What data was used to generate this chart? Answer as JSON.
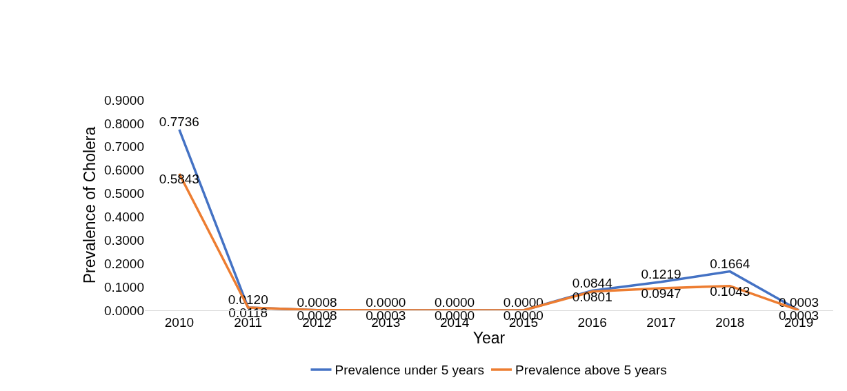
{
  "chart_data": {
    "type": "line",
    "xlabel": "Year",
    "ylabel": "Prevalence of Cholera",
    "categories": [
      "2010",
      "2011",
      "2012",
      "2013",
      "2014",
      "2015",
      "2016",
      "2017",
      "2018",
      "2019"
    ],
    "series": [
      {
        "name": "Prevalence under 5 years",
        "color": "#4472c4",
        "values": [
          0.7736,
          0.012,
          0.0008,
          0.0,
          0.0,
          0.0,
          0.0844,
          0.1219,
          0.1664,
          0.0003
        ],
        "value_labels": [
          "0.7736",
          "0.0120",
          "0.0008",
          "0.0000",
          "0.0000",
          "0.0000",
          "0.0844",
          "0.1219",
          "0.1664",
          "0.0003"
        ]
      },
      {
        "name": "Prevalence above 5 years",
        "color": "#ed7d31",
        "values": [
          0.5843,
          0.0118,
          0.0008,
          0.0003,
          0.0,
          0.0,
          0.0801,
          0.0947,
          0.1043,
          0.0003
        ],
        "value_labels": [
          "0.5843",
          "0.0118",
          "0.0008",
          "0.0003",
          "0.0000",
          "0.0000",
          "0.0801",
          "0.0947",
          "0.1043",
          "0.0003"
        ]
      }
    ],
    "ylim": [
      0,
      0.9
    ],
    "yticks": [
      {
        "value": 0,
        "label": "0.0000"
      },
      {
        "value": 0.1,
        "label": "0.1000"
      },
      {
        "value": 0.2,
        "label": "0.2000"
      },
      {
        "value": 0.3,
        "label": "0.3000"
      },
      {
        "value": 0.4,
        "label": "0.4000"
      },
      {
        "value": 0.5,
        "label": "0.5000"
      },
      {
        "value": 0.6,
        "label": "0.6000"
      },
      {
        "value": 0.7,
        "label": "0.7000"
      },
      {
        "value": 0.8,
        "label": "0.8000"
      },
      {
        "value": 0.9,
        "label": "0.9000"
      }
    ],
    "grid": false,
    "legend": "bottom",
    "marker": "none",
    "line_style": "solid"
  }
}
